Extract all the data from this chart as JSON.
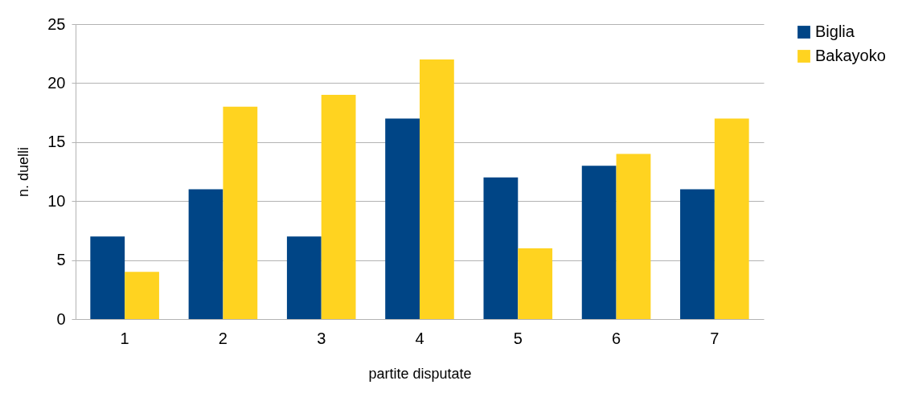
{
  "chart_data": {
    "type": "bar",
    "xlabel": "partite disputate",
    "ylabel": "n. duelli",
    "categories": [
      "1",
      "2",
      "3",
      "4",
      "5",
      "6",
      "7"
    ],
    "series": [
      {
        "name": "Biglia",
        "color": "#004586",
        "values": [
          7,
          11,
          7,
          17,
          12,
          13,
          11
        ]
      },
      {
        "name": "Bakayoko",
        "color": "#ffd320",
        "values": [
          4,
          18,
          19,
          22,
          6,
          14,
          17
        ]
      }
    ],
    "ylim": [
      0,
      25
    ],
    "yticks": [
      0,
      5,
      10,
      15,
      20,
      25
    ],
    "grid": "y",
    "legend": "right"
  }
}
